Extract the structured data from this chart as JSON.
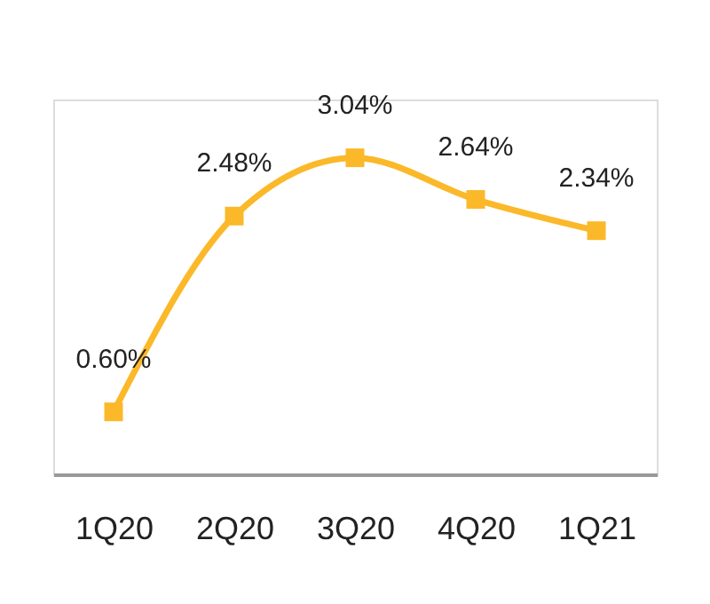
{
  "chart_data": {
    "type": "line",
    "categories": [
      "1Q20",
      "2Q20",
      "3Q20",
      "4Q20",
      "1Q21"
    ],
    "series": [
      {
        "color": "#fbb829",
        "values": [
          0.6,
          2.48,
          3.04,
          2.64,
          2.34
        ],
        "value_labels": [
          "0.60%",
          "2.48%",
          "3.04%",
          "2.64%",
          "2.34%"
        ]
      }
    ],
    "ylim": [
      0,
      3.6
    ],
    "marker": "square",
    "line_style": "solid",
    "grid": false
  }
}
